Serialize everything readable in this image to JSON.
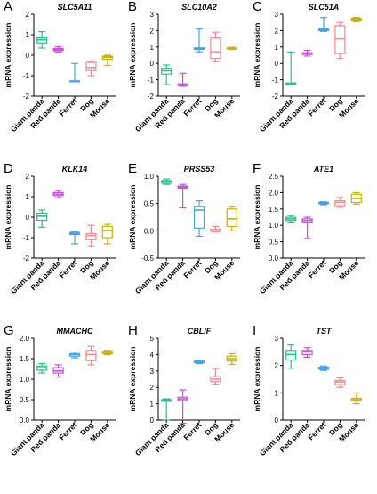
{
  "figure": {
    "categories": [
      "Giant panda",
      "Red panda",
      "Ferret",
      "Dog",
      "Mouse"
    ],
    "ylabel": "mRNA expression",
    "colors": [
      "#2bbf8f",
      "#c654d9",
      "#4aa3e6",
      "#f58a93",
      "#c7b20a"
    ]
  },
  "chart_data": [
    {
      "type": "box",
      "letter": "A",
      "title": "SLC5A11",
      "ylim": [
        -2,
        2
      ],
      "yticks": [
        -2,
        -1,
        0,
        1,
        2
      ],
      "categories": [
        "Giant panda",
        "Red panda",
        "Ferret",
        "Dog",
        "Mouse"
      ],
      "series": [
        {
          "min": 0.35,
          "q1": 0.6,
          "median": 0.75,
          "q3": 0.85,
          "max": 1.15
        },
        {
          "min": 0.15,
          "q1": 0.22,
          "median": 0.27,
          "q3": 0.33,
          "max": 0.42
        },
        {
          "min": -1.3,
          "q1": -1.3,
          "median": -1.28,
          "q3": -1.25,
          "max": -0.4
        },
        {
          "min": -1.0,
          "q1": -0.75,
          "median": -0.6,
          "q3": -0.35,
          "max": -0.3
        },
        {
          "min": -0.5,
          "q1": -0.2,
          "median": -0.1,
          "q3": -0.05,
          "max": 0.0
        }
      ]
    },
    {
      "type": "box",
      "letter": "B",
      "title": "SLC10A2",
      "ylim": [
        -2,
        3
      ],
      "yticks": [
        -2,
        -1,
        0,
        1,
        2,
        3
      ],
      "categories": [
        "Giant panda",
        "Red panda",
        "Ferret",
        "Dog",
        "Mouse"
      ],
      "series": [
        {
          "min": -1.3,
          "q1": -0.65,
          "median": -0.45,
          "q3": -0.3,
          "max": -0.1
        },
        {
          "min": -1.4,
          "q1": -1.35,
          "median": -1.3,
          "q3": -1.25,
          "max": -0.6
        },
        {
          "min": 0.7,
          "q1": 0.85,
          "median": 0.9,
          "q3": 0.95,
          "max": 2.1
        },
        {
          "min": 0.1,
          "q1": 0.3,
          "median": 0.7,
          "q3": 1.55,
          "max": 1.9
        },
        {
          "min": 0.85,
          "q1": 0.88,
          "median": 0.92,
          "q3": 0.95,
          "max": 0.98
        }
      ]
    },
    {
      "type": "box",
      "letter": "C",
      "title": "SLC51A",
      "ylim": [
        -2,
        3
      ],
      "yticks": [
        -2,
        -1,
        0,
        1,
        2,
        3
      ],
      "categories": [
        "Giant panda",
        "Red panda",
        "Ferret",
        "Dog",
        "Mouse"
      ],
      "series": [
        {
          "min": -1.3,
          "q1": -1.3,
          "median": -1.25,
          "q3": -1.2,
          "max": 0.7
        },
        {
          "min": 0.45,
          "q1": 0.55,
          "median": 0.6,
          "q3": 0.65,
          "max": 0.8
        },
        {
          "min": 1.95,
          "q1": 2.0,
          "median": 2.05,
          "q3": 2.1,
          "max": 2.8
        },
        {
          "min": 0.3,
          "q1": 0.6,
          "median": 1.5,
          "q3": 2.3,
          "max": 2.5
        },
        {
          "min": 2.55,
          "q1": 2.6,
          "median": 2.7,
          "q3": 2.75,
          "max": 2.8
        }
      ]
    },
    {
      "type": "box",
      "letter": "D",
      "title": "KLK14",
      "ylim": [
        -2,
        2
      ],
      "yticks": [
        -2,
        -1,
        0,
        1,
        2
      ],
      "categories": [
        "Giant panda",
        "Red panda",
        "Ferret",
        "Dog",
        "Mouse"
      ],
      "series": [
        {
          "min": -0.5,
          "q1": -0.15,
          "median": 0.05,
          "q3": 0.2,
          "max": 0.35
        },
        {
          "min": 0.95,
          "q1": 1.05,
          "median": 1.12,
          "q3": 1.2,
          "max": 1.3
        },
        {
          "min": -1.3,
          "q1": -0.85,
          "median": -0.8,
          "q3": -0.75,
          "max": -0.72
        },
        {
          "min": -1.4,
          "q1": -1.1,
          "median": -0.9,
          "q3": -0.8,
          "max": -0.4
        },
        {
          "min": -1.3,
          "q1": -1.0,
          "median": -0.65,
          "q3": -0.45,
          "max": -0.35
        }
      ]
    },
    {
      "type": "box",
      "letter": "E",
      "title": "PRSS53",
      "ylim": [
        -0.5,
        1.0
      ],
      "yticks": [
        -0.5,
        0.0,
        0.5,
        1.0
      ],
      "categories": [
        "Giant panda",
        "Red panda",
        "Ferret",
        "Dog",
        "Mouse"
      ],
      "series": [
        {
          "min": 0.85,
          "q1": 0.87,
          "median": 0.9,
          "q3": 0.92,
          "max": 0.95
        },
        {
          "min": 0.42,
          "q1": 0.78,
          "median": 0.8,
          "q3": 0.82,
          "max": 0.85
        },
        {
          "min": -0.1,
          "q1": 0.05,
          "median": 0.38,
          "q3": 0.45,
          "max": 0.55
        },
        {
          "min": -0.02,
          "q1": -0.01,
          "median": 0.0,
          "q3": 0.03,
          "max": 0.08
        },
        {
          "min": 0.0,
          "q1": 0.08,
          "median": 0.22,
          "q3": 0.4,
          "max": 0.45
        }
      ]
    },
    {
      "type": "box",
      "letter": "F",
      "title": "ATE1",
      "ylim": [
        0.0,
        2.5
      ],
      "yticks": [
        0.0,
        0.5,
        1.0,
        1.5,
        2.0,
        2.5
      ],
      "categories": [
        "Giant panda",
        "Red panda",
        "Ferret",
        "Dog",
        "Mouse"
      ],
      "series": [
        {
          "min": 1.1,
          "q1": 1.15,
          "median": 1.2,
          "q3": 1.25,
          "max": 1.3
        },
        {
          "min": 0.6,
          "q1": 1.1,
          "median": 1.15,
          "q3": 1.2,
          "max": 1.25
        },
        {
          "min": 1.63,
          "q1": 1.66,
          "median": 1.68,
          "q3": 1.7,
          "max": 1.72
        },
        {
          "min": 1.55,
          "q1": 1.6,
          "median": 1.7,
          "q3": 1.75,
          "max": 1.85
        },
        {
          "min": 1.65,
          "q1": 1.7,
          "median": 1.82,
          "q3": 1.95,
          "max": 2.0
        }
      ]
    },
    {
      "type": "box",
      "letter": "G",
      "title": "MMACHC",
      "ylim": [
        0.0,
        2.0
      ],
      "yticks": [
        0.0,
        0.5,
        1.0,
        1.5,
        2.0
      ],
      "categories": [
        "Giant panda",
        "Red panda",
        "Ferret",
        "Dog",
        "Mouse"
      ],
      "series": [
        {
          "min": 1.15,
          "q1": 1.22,
          "median": 1.28,
          "q3": 1.32,
          "max": 1.38
        },
        {
          "min": 1.05,
          "q1": 1.15,
          "median": 1.2,
          "q3": 1.28,
          "max": 1.35
        },
        {
          "min": 1.52,
          "q1": 1.56,
          "median": 1.6,
          "q3": 1.62,
          "max": 1.66
        },
        {
          "min": 1.35,
          "q1": 1.45,
          "median": 1.6,
          "q3": 1.7,
          "max": 1.8
        },
        {
          "min": 1.6,
          "q1": 1.62,
          "median": 1.65,
          "q3": 1.68,
          "max": 1.7
        }
      ]
    },
    {
      "type": "box",
      "letter": "H",
      "title": "CBLIF",
      "ylim": [
        0,
        5
      ],
      "yticks": [
        0,
        1,
        2,
        3,
        4,
        5
      ],
      "categories": [
        "Giant panda",
        "Red panda",
        "Ferret",
        "Dog",
        "Mouse"
      ],
      "series": [
        {
          "min": 0.0,
          "q1": 1.15,
          "median": 1.2,
          "q3": 1.25,
          "max": 1.3
        },
        {
          "min": -0.2,
          "q1": 1.2,
          "median": 1.3,
          "q3": 1.4,
          "max": 1.85
        },
        {
          "min": 3.45,
          "q1": 3.5,
          "median": 3.55,
          "q3": 3.6,
          "max": 3.65
        },
        {
          "min": 2.2,
          "q1": 2.35,
          "median": 2.5,
          "q3": 2.65,
          "max": 3.15
        },
        {
          "min": 3.4,
          "q1": 3.6,
          "median": 3.75,
          "q3": 3.9,
          "max": 4.05
        }
      ]
    },
    {
      "type": "box",
      "letter": "I",
      "title": "TST",
      "ylim": [
        0,
        3
      ],
      "yticks": [
        0,
        1,
        2,
        3
      ],
      "categories": [
        "Giant panda",
        "Red panda",
        "Ferret",
        "Dog",
        "Mouse"
      ],
      "series": [
        {
          "min": 1.9,
          "q1": 2.2,
          "median": 2.4,
          "q3": 2.55,
          "max": 2.75
        },
        {
          "min": 2.3,
          "q1": 2.4,
          "median": 2.5,
          "q3": 2.55,
          "max": 2.65
        },
        {
          "min": 1.82,
          "q1": 1.86,
          "median": 1.9,
          "q3": 1.94,
          "max": 1.98
        },
        {
          "min": 1.2,
          "q1": 1.3,
          "median": 1.4,
          "q3": 1.45,
          "max": 1.55
        },
        {
          "min": 0.6,
          "q1": 0.72,
          "median": 0.75,
          "q3": 0.8,
          "max": 1.0
        }
      ]
    }
  ]
}
